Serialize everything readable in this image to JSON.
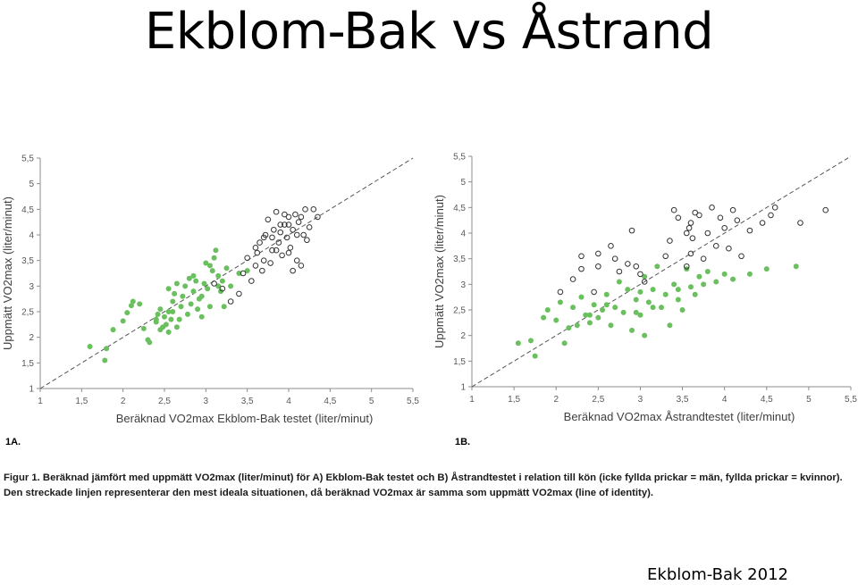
{
  "slide": {
    "title": "Ekblom-Bak vs Åstrand",
    "source": "Ekblom-Bak 2012"
  },
  "caption": {
    "prefix": "Figur 1.",
    "text": " Beräknad jämfört med uppmätt VO2max (liter/minut) för A) Ekblom-Bak testet och B) Åstrandtestet i relation till kön (icke fyllda prickar = män, fyllda prickar = kvinnor). Den streckade linjen representerar den mest ideala situationen, då beräknad VO2max är samma som uppmätt VO2max (line of identity)."
  },
  "chart_data": [
    {
      "type": "scatter",
      "panel_label": "1A.",
      "xlabel": "Beräknad VO2max Ekblom-Bak testet (liter/minut)",
      "ylabel": "Uppmätt VO2max (liter/minut)",
      "xlim": [
        1,
        5.5
      ],
      "ylim": [
        1,
        5.5
      ],
      "xticks": [
        "1",
        "1,5",
        "2",
        "2,5",
        "3",
        "3,5",
        "4",
        "4,5",
        "5",
        "5,5"
      ],
      "yticks": [
        "1",
        "1,5",
        "2",
        "2,5",
        "3",
        "3,5",
        "4",
        "4,5",
        "5",
        "5,5"
      ],
      "grid": false,
      "identity_line": true,
      "colors": {
        "women": "#6abf5e",
        "men": "#333333",
        "identity": "#555555"
      },
      "series": [
        {
          "marker": "filled",
          "color": "#6abf5e",
          "points": [
            [
              1.6,
              1.82
            ],
            [
              1.78,
              1.55
            ],
            [
              1.8,
              1.78
            ],
            [
              1.88,
              2.15
            ],
            [
              2.0,
              2.32
            ],
            [
              2.05,
              2.48
            ],
            [
              2.1,
              2.62
            ],
            [
              2.12,
              2.7
            ],
            [
              2.2,
              2.65
            ],
            [
              2.25,
              2.17
            ],
            [
              2.3,
              1.95
            ],
            [
              2.32,
              1.9
            ],
            [
              2.4,
              2.3
            ],
            [
              2.42,
              2.45
            ],
            [
              2.45,
              2.55
            ],
            [
              2.48,
              2.2
            ],
            [
              2.5,
              2.4
            ],
            [
              2.52,
              2.25
            ],
            [
              2.55,
              2.5
            ],
            [
              2.58,
              2.35
            ],
            [
              2.6,
              2.7
            ],
            [
              2.62,
              2.85
            ],
            [
              2.65,
              2.2
            ],
            [
              2.7,
              2.6
            ],
            [
              2.72,
              2.8
            ],
            [
              2.75,
              3.0
            ],
            [
              2.78,
              2.45
            ],
            [
              2.8,
              3.15
            ],
            [
              2.82,
              2.65
            ],
            [
              2.85,
              2.9
            ],
            [
              2.88,
              3.1
            ],
            [
              2.9,
              2.55
            ],
            [
              2.92,
              2.75
            ],
            [
              2.95,
              2.4
            ],
            [
              2.98,
              3.05
            ],
            [
              3.0,
              3.45
            ],
            [
              3.02,
              2.95
            ],
            [
              3.05,
              2.6
            ],
            [
              3.08,
              3.3
            ],
            [
              3.1,
              3.55
            ],
            [
              3.12,
              3.7
            ],
            [
              3.15,
              3.2
            ],
            [
              3.18,
              2.9
            ],
            [
              3.2,
              3.1
            ],
            [
              3.22,
              2.6
            ],
            [
              3.25,
              3.35
            ],
            [
              3.3,
              3.0
            ],
            [
              3.4,
              3.25
            ],
            [
              3.5,
              3.3
            ],
            [
              2.55,
              2.95
            ],
            [
              2.65,
              3.05
            ],
            [
              2.45,
              2.15
            ],
            [
              2.6,
              2.5
            ],
            [
              2.68,
              2.35
            ],
            [
              2.95,
              2.8
            ],
            [
              3.05,
              3.4
            ],
            [
              2.85,
              3.2
            ],
            [
              2.55,
              2.1
            ],
            [
              2.4,
              2.35
            ],
            [
              3.15,
              3.0
            ]
          ]
        },
        {
          "marker": "hollow",
          "color": "#333333",
          "points": [
            [
              3.1,
              3.05
            ],
            [
              3.2,
              2.95
            ],
            [
              3.3,
              2.7
            ],
            [
              3.4,
              2.85
            ],
            [
              3.45,
              3.25
            ],
            [
              3.5,
              3.55
            ],
            [
              3.55,
              3.1
            ],
            [
              3.6,
              3.4
            ],
            [
              3.62,
              3.65
            ],
            [
              3.65,
              3.85
            ],
            [
              3.68,
              3.3
            ],
            [
              3.7,
              3.5
            ],
            [
              3.72,
              4.0
            ],
            [
              3.75,
              4.3
            ],
            [
              3.78,
              3.45
            ],
            [
              3.8,
              3.7
            ],
            [
              3.82,
              4.1
            ],
            [
              3.85,
              4.45
            ],
            [
              3.88,
              3.85
            ],
            [
              3.9,
              4.05
            ],
            [
              3.92,
              3.6
            ],
            [
              3.95,
              4.2
            ],
            [
              3.98,
              3.95
            ],
            [
              4.0,
              4.35
            ],
            [
              4.02,
              3.75
            ],
            [
              4.05,
              4.1
            ],
            [
              4.08,
              4.4
            ],
            [
              4.1,
              3.5
            ],
            [
              4.12,
              4.25
            ],
            [
              4.15,
              3.4
            ],
            [
              4.18,
              4.0
            ],
            [
              4.2,
              4.5
            ],
            [
              4.22,
              3.9
            ],
            [
              4.25,
              4.15
            ],
            [
              4.3,
              4.5
            ],
            [
              4.35,
              4.35
            ],
            [
              4.05,
              3.3
            ],
            [
              4.0,
              3.65
            ],
            [
              3.9,
              4.2
            ],
            [
              4.1,
              4.0
            ],
            [
              3.85,
              3.7
            ],
            [
              4.0,
              4.2
            ],
            [
              3.95,
              4.4
            ],
            [
              3.7,
              3.95
            ],
            [
              4.15,
              4.35
            ],
            [
              3.6,
              3.75
            ],
            [
              3.8,
              3.95
            ]
          ]
        }
      ]
    },
    {
      "type": "scatter",
      "panel_label": "1B.",
      "xlabel": "Beräknad VO2max Åstrandtestet (liter/minut)",
      "ylabel": "Uppmätt VO2max (liter/minut)",
      "xlim": [
        1,
        5.5
      ],
      "ylim": [
        1,
        5.5
      ],
      "xticks": [
        "1",
        "1,5",
        "2",
        "2,5",
        "3",
        "3,5",
        "4",
        "4,5",
        "5",
        "5,5"
      ],
      "yticks": [
        "1",
        "1,5",
        "2",
        "2,5",
        "3",
        "3,5",
        "4",
        "4,5",
        "5",
        "5,5"
      ],
      "grid": false,
      "identity_line": true,
      "colors": {
        "women": "#6abf5e",
        "men": "#333333",
        "identity": "#555555"
      },
      "series": [
        {
          "marker": "filled",
          "color": "#6abf5e",
          "points": [
            [
              1.55,
              1.85
            ],
            [
              1.7,
              1.9
            ],
            [
              1.75,
              1.6
            ],
            [
              1.85,
              2.35
            ],
            [
              1.9,
              2.5
            ],
            [
              2.0,
              2.3
            ],
            [
              2.05,
              2.65
            ],
            [
              2.1,
              1.85
            ],
            [
              2.15,
              2.15
            ],
            [
              2.2,
              2.55
            ],
            [
              2.25,
              2.2
            ],
            [
              2.3,
              2.75
            ],
            [
              2.35,
              2.4
            ],
            [
              2.4,
              2.25
            ],
            [
              2.45,
              2.6
            ],
            [
              2.5,
              2.35
            ],
            [
              2.55,
              2.5
            ],
            [
              2.6,
              2.8
            ],
            [
              2.65,
              2.2
            ],
            [
              2.7,
              2.55
            ],
            [
              2.75,
              3.05
            ],
            [
              2.8,
              2.45
            ],
            [
              2.85,
              2.9
            ],
            [
              2.9,
              2.1
            ],
            [
              2.95,
              2.7
            ],
            [
              3.0,
              2.4
            ],
            [
              3.05,
              3.15
            ],
            [
              3.1,
              2.65
            ],
            [
              3.15,
              2.9
            ],
            [
              3.2,
              3.35
            ],
            [
              3.25,
              2.55
            ],
            [
              3.3,
              2.8
            ],
            [
              3.35,
              2.2
            ],
            [
              3.4,
              3.0
            ],
            [
              3.45,
              2.7
            ],
            [
              3.5,
              2.5
            ],
            [
              3.55,
              3.3
            ],
            [
              3.6,
              2.95
            ],
            [
              3.65,
              2.8
            ],
            [
              3.7,
              3.15
            ],
            [
              3.75,
              3.0
            ],
            [
              3.8,
              3.25
            ],
            [
              3.9,
              3.05
            ],
            [
              4.0,
              3.2
            ],
            [
              4.1,
              3.1
            ],
            [
              4.3,
              3.2
            ],
            [
              4.5,
              3.3
            ],
            [
              4.85,
              3.35
            ],
            [
              2.95,
              2.45
            ],
            [
              3.05,
              2.0
            ],
            [
              2.6,
              2.6
            ],
            [
              3.0,
              2.85
            ],
            [
              3.45,
              2.9
            ],
            [
              2.4,
              2.4
            ],
            [
              3.15,
              2.55
            ]
          ]
        },
        {
          "marker": "hollow",
          "color": "#333333",
          "points": [
            [
              2.05,
              2.85
            ],
            [
              2.2,
              3.1
            ],
            [
              2.3,
              3.3
            ],
            [
              2.3,
              3.55
            ],
            [
              2.5,
              3.35
            ],
            [
              2.5,
              3.6
            ],
            [
              2.65,
              3.75
            ],
            [
              2.7,
              3.5
            ],
            [
              2.75,
              3.25
            ],
            [
              2.85,
              3.4
            ],
            [
              2.9,
              4.05
            ],
            [
              3.0,
              3.2
            ],
            [
              3.05,
              3.05
            ],
            [
              3.3,
              3.55
            ],
            [
              3.35,
              3.85
            ],
            [
              3.4,
              4.45
            ],
            [
              3.45,
              4.3
            ],
            [
              3.55,
              4.0
            ],
            [
              3.6,
              4.2
            ],
            [
              3.62,
              3.9
            ],
            [
              3.65,
              4.4
            ],
            [
              3.7,
              4.35
            ],
            [
              3.75,
              3.5
            ],
            [
              3.8,
              4.0
            ],
            [
              3.85,
              4.5
            ],
            [
              3.9,
              3.75
            ],
            [
              3.95,
              4.3
            ],
            [
              4.0,
              4.1
            ],
            [
              4.05,
              3.7
            ],
            [
              4.1,
              4.45
            ],
            [
              4.15,
              4.25
            ],
            [
              4.2,
              3.55
            ],
            [
              4.3,
              4.05
            ],
            [
              4.45,
              4.2
            ],
            [
              4.55,
              4.35
            ],
            [
              4.6,
              4.5
            ],
            [
              4.9,
              4.2
            ],
            [
              5.2,
              4.45
            ],
            [
              3.6,
              3.6
            ],
            [
              3.58,
              4.1
            ],
            [
              2.45,
              2.85
            ],
            [
              2.95,
              3.35
            ],
            [
              3.55,
              3.35
            ]
          ]
        }
      ]
    }
  ]
}
